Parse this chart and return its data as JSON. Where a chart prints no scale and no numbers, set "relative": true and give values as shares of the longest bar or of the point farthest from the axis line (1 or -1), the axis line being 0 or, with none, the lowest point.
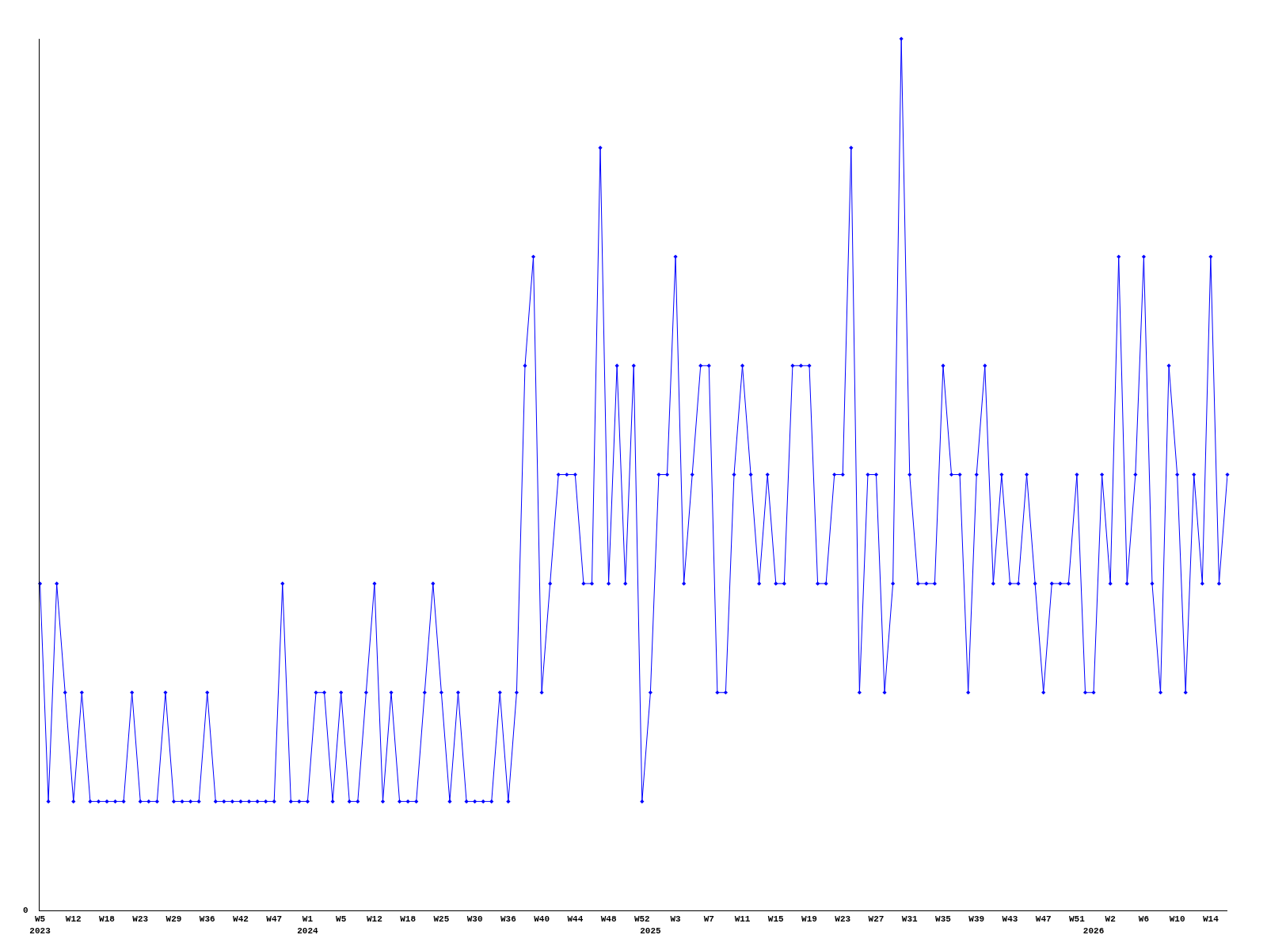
{
  "chart_data": {
    "type": "line",
    "relative": true,
    "color": "#0000ff",
    "marker": "diamond",
    "legend": false,
    "annotations": [
      "0"
    ],
    "categories": [
      "W5\n2023",
      null,
      null,
      null,
      "W12",
      null,
      null,
      null,
      "W18",
      null,
      null,
      null,
      "W23",
      null,
      null,
      null,
      "W29",
      null,
      null,
      null,
      "W36",
      null,
      null,
      null,
      "W42",
      null,
      null,
      null,
      "W47",
      null,
      null,
      null,
      "W1\n2024",
      null,
      null,
      null,
      "W5",
      null,
      null,
      null,
      "W12",
      null,
      null,
      null,
      "W18",
      null,
      null,
      null,
      "W25",
      null,
      null,
      null,
      "W30",
      null,
      null,
      null,
      "W36",
      null,
      null,
      null,
      "W40",
      null,
      null,
      null,
      "W44",
      null,
      null,
      null,
      "W48",
      null,
      null,
      null,
      "W52",
      "\n2025",
      null,
      null,
      "W3",
      null,
      null,
      null,
      "W7",
      null,
      null,
      null,
      "W11",
      null,
      null,
      null,
      "W15",
      null,
      null,
      null,
      "W19",
      null,
      null,
      null,
      "W23",
      null,
      null,
      null,
      "W27",
      null,
      null,
      null,
      "W31",
      null,
      null,
      null,
      "W35",
      null,
      null,
      null,
      "W39",
      null,
      null,
      null,
      "W43",
      null,
      null,
      null,
      "W47",
      null,
      null,
      null,
      "W51",
      null,
      "\n2026",
      null,
      "W2",
      null,
      null,
      null,
      "W6",
      null,
      null,
      null,
      "W10",
      null,
      null,
      null,
      "W14",
      null,
      null
    ],
    "values": [
      0.375,
      0.125,
      0.375,
      0.25,
      0.125,
      0.25,
      0.125,
      0.125,
      0.125,
      0.125,
      0.125,
      0.25,
      0.125,
      0.125,
      0.125,
      0.25,
      0.125,
      0.125,
      0.125,
      0.125,
      0.25,
      0.125,
      0.125,
      0.125,
      0.125,
      0.125,
      0.125,
      0.125,
      0.125,
      0.375,
      0.125,
      0.125,
      0.125,
      0.25,
      0.25,
      0.125,
      0.25,
      0.125,
      0.125,
      0.25,
      0.375,
      0.125,
      0.25,
      0.125,
      0.125,
      0.125,
      0.25,
      0.375,
      0.25,
      0.125,
      0.25,
      0.125,
      0.125,
      0.125,
      0.125,
      0.25,
      0.125,
      0.25,
      0.625,
      0.75,
      0.25,
      0.375,
      0.5,
      0.5,
      0.5,
      0.375,
      0.375,
      0.875,
      0.375,
      0.625,
      0.375,
      0.625,
      0.125,
      0.25,
      0.5,
      0.5,
      0.75,
      0.375,
      0.5,
      0.625,
      0.625,
      0.25,
      0.25,
      0.5,
      0.625,
      0.5,
      0.375,
      0.5,
      0.375,
      0.375,
      0.625,
      0.625,
      0.625,
      0.375,
      0.375,
      0.5,
      0.5,
      0.875,
      0.25,
      0.5,
      0.5,
      0.25,
      0.375,
      1,
      0.5,
      0.375,
      0.375,
      0.375,
      0.625,
      0.5,
      0.5,
      0.25,
      0.5,
      0.625,
      0.375,
      0.5,
      0.375,
      0.375,
      0.5,
      0.375,
      0.25,
      0.375,
      0.375,
      0.375,
      0.5,
      0.25,
      0.25,
      0.5,
      0.375,
      0.75,
      0.375,
      0.5,
      0.75,
      0.375,
      0.25,
      0.625,
      0.5,
      0.25,
      0.5,
      0.375,
      0.75,
      0.375,
      0.5
    ]
  }
}
